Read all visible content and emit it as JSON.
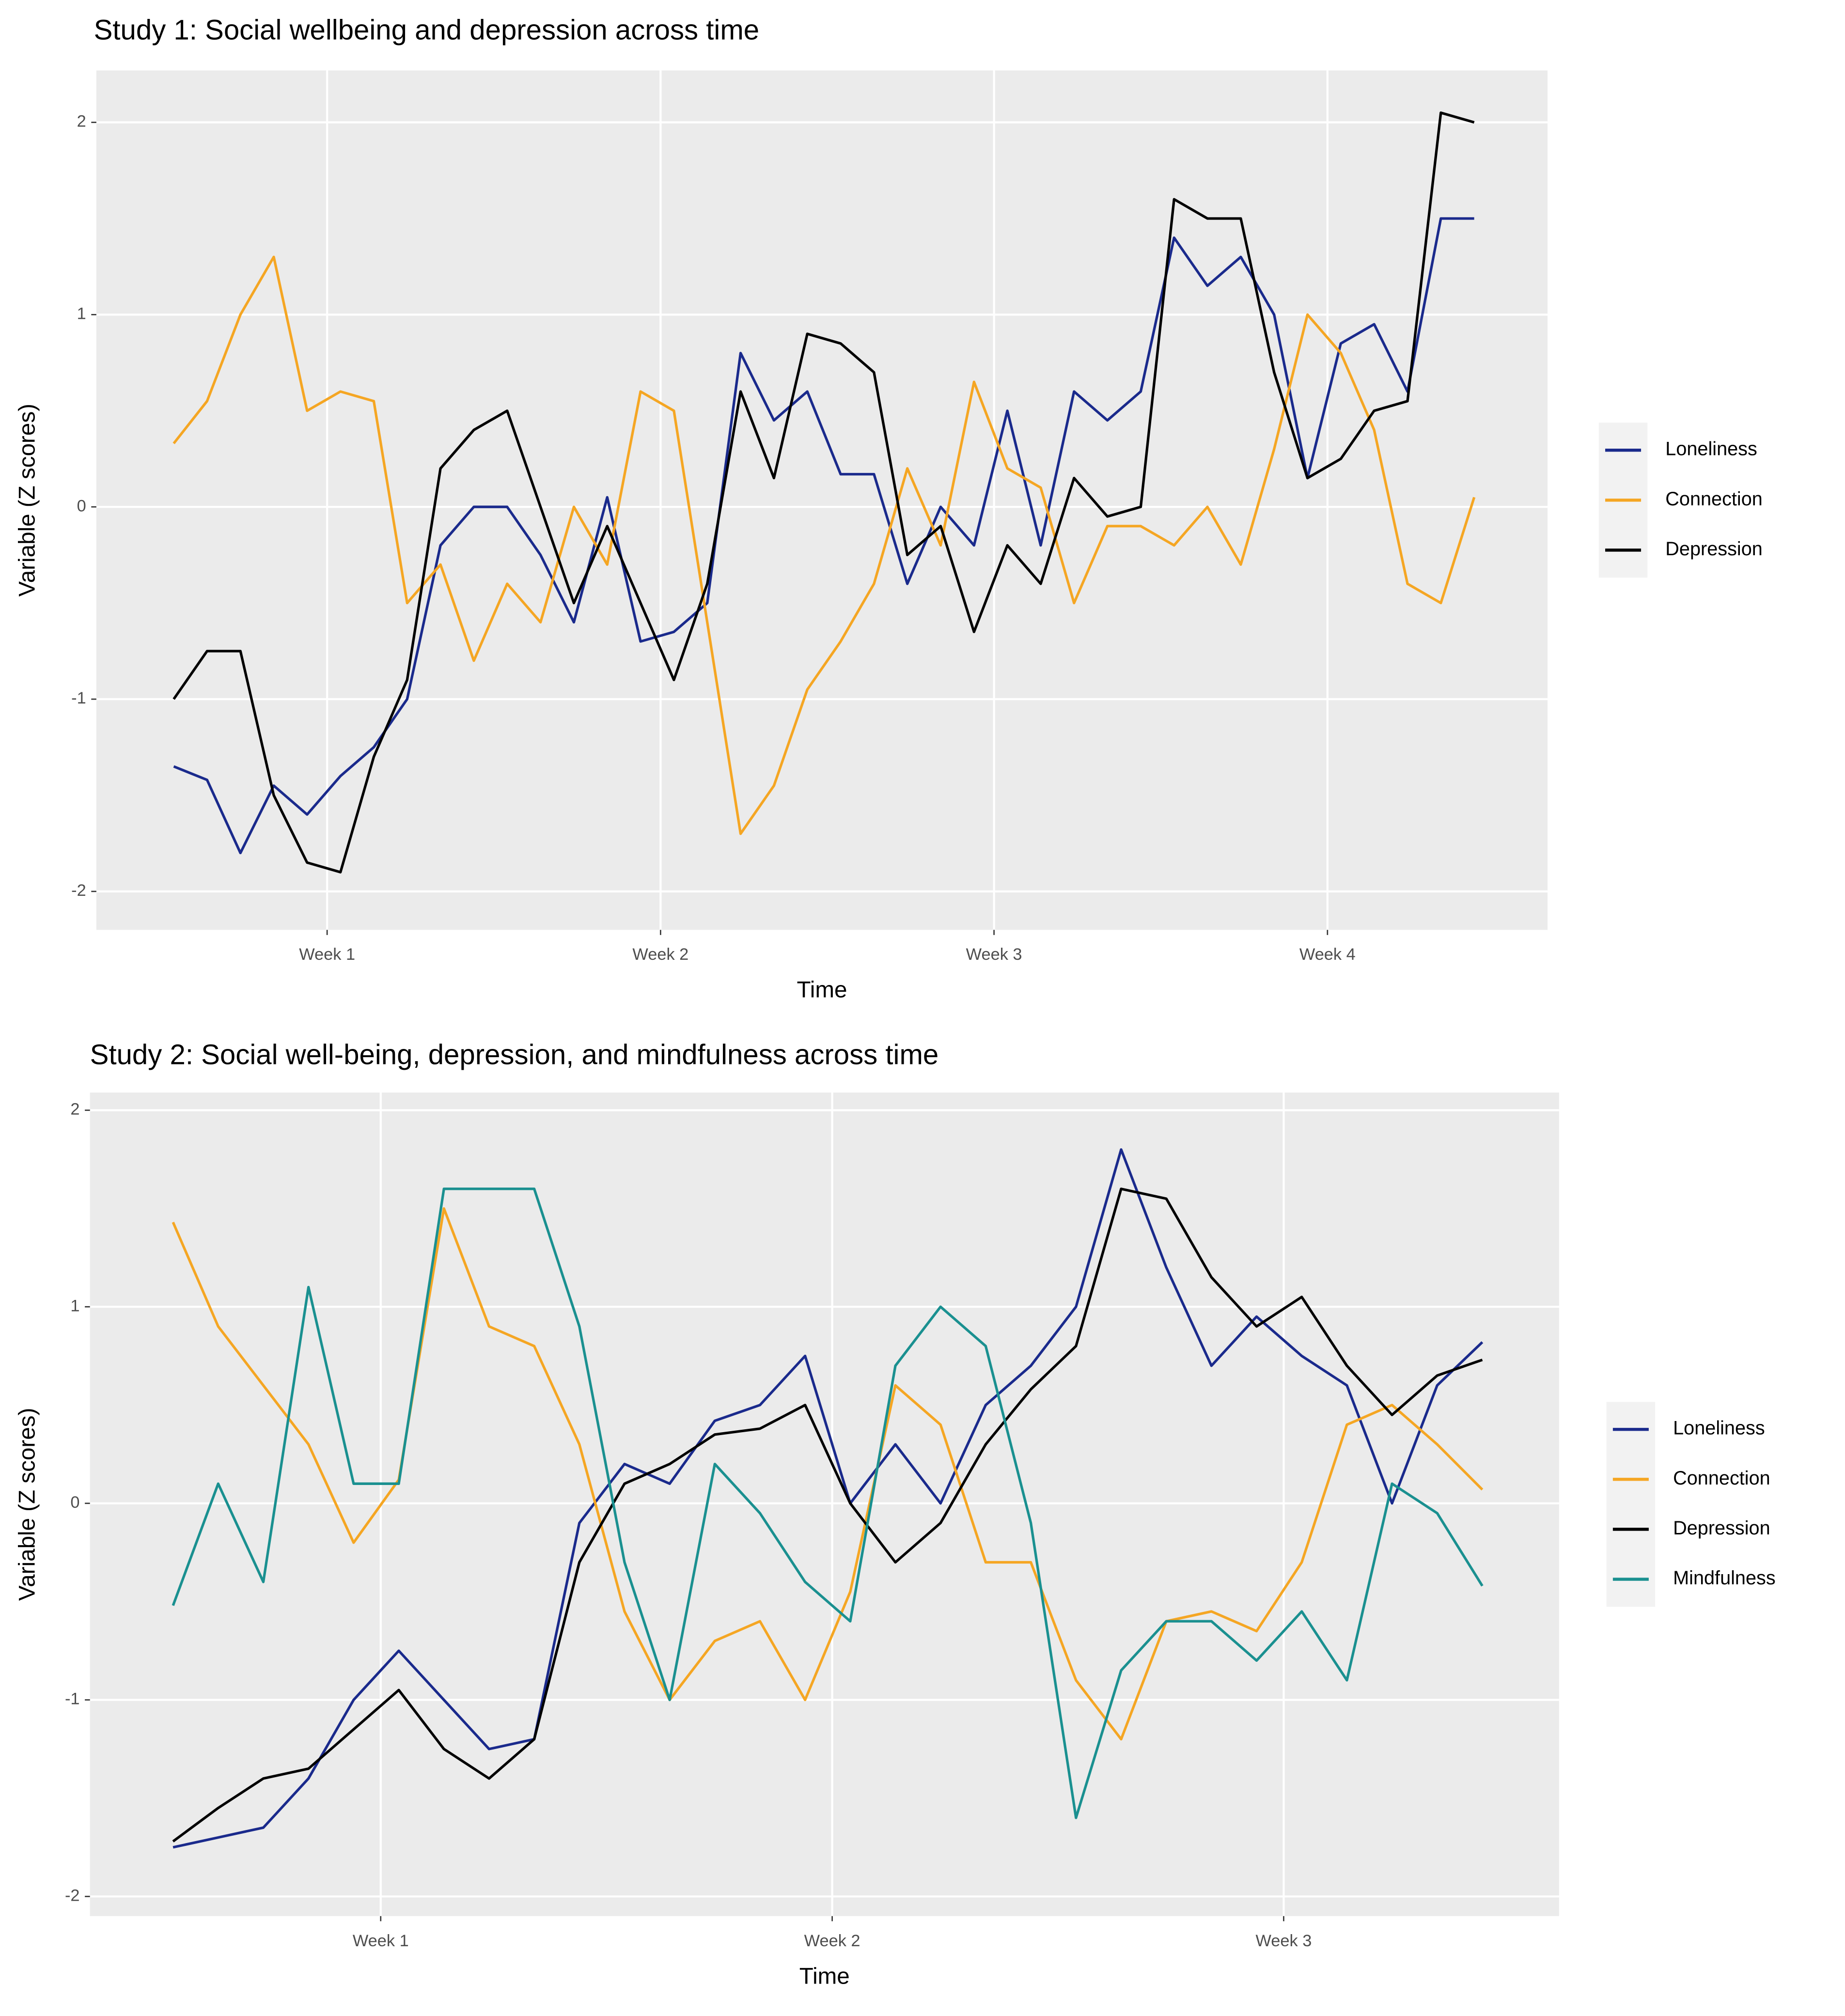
{
  "chart_data": [
    {
      "type": "line",
      "title": "Study 1: Social wellbeing and depression across time",
      "xlabel": "Time",
      "ylabel": "Variable (Z scores)",
      "x": [
        0.54,
        0.64,
        0.74,
        0.84,
        0.94,
        1.04,
        1.14,
        1.24,
        1.34,
        1.44,
        1.54,
        1.64,
        1.74,
        1.84,
        1.94,
        2.04,
        2.14,
        2.24,
        2.34,
        2.44,
        2.54,
        2.64,
        2.74,
        2.84,
        2.94,
        3.04,
        3.14,
        3.24,
        3.34,
        3.44,
        3.54,
        3.64,
        3.74,
        3.84,
        3.94,
        4.04,
        4.14,
        4.24,
        4.34,
        4.44
      ],
      "series": [
        {
          "name": "Loneliness",
          "color": "#1a2a8c",
          "values": [
            -1.35,
            -1.42,
            -1.8,
            -1.45,
            -1.6,
            -1.4,
            -1.25,
            -1.0,
            -0.2,
            0.0,
            0.0,
            -0.25,
            -0.6,
            0.05,
            -0.7,
            -0.65,
            -0.5,
            0.8,
            0.45,
            0.6,
            0.17,
            0.17,
            -0.4,
            0.0,
            -0.2,
            0.5,
            -0.2,
            0.6,
            0.45,
            0.6,
            1.4,
            1.15,
            1.3,
            1.0,
            0.15,
            0.85,
            0.95,
            0.6,
            1.5,
            1.5
          ]
        },
        {
          "name": "Connection",
          "color": "#f5a623",
          "values": [
            0.33,
            0.55,
            1.0,
            1.3,
            0.5,
            0.6,
            0.55,
            -0.5,
            -0.3,
            -0.8,
            -0.4,
            -0.6,
            0.0,
            -0.3,
            0.6,
            0.5,
            -0.6,
            -1.7,
            -1.45,
            -0.95,
            -0.7,
            -0.4,
            0.2,
            -0.2,
            0.65,
            0.2,
            0.1,
            -0.5,
            -0.1,
            -0.1,
            -0.2,
            0.0,
            -0.3,
            0.3,
            1.0,
            0.8,
            0.4,
            -0.4,
            -0.5,
            0.05
          ]
        },
        {
          "name": "Depression",
          "color": "#000000",
          "values": [
            -1.0,
            -0.75,
            -0.75,
            -1.5,
            -1.85,
            -1.9,
            -1.3,
            -0.9,
            0.2,
            0.4,
            0.5,
            0.0,
            -0.5,
            -0.1,
            -0.5,
            -0.9,
            -0.4,
            0.6,
            0.15,
            0.9,
            0.85,
            0.7,
            -0.25,
            -0.1,
            -0.65,
            -0.2,
            -0.4,
            0.15,
            -0.05,
            0.0,
            1.6,
            1.5,
            1.5,
            0.7,
            0.15,
            0.25,
            0.5,
            0.55,
            2.05,
            2.0
          ]
        }
      ],
      "xlim": [
        0.308,
        4.66
      ],
      "xticks": [
        {
          "value": 1,
          "label": "Week 1"
        },
        {
          "value": 2,
          "label": "Week 2"
        },
        {
          "value": 3,
          "label": "Week 3"
        },
        {
          "value": 4,
          "label": "Week 4"
        }
      ],
      "ylim": [
        -2.2,
        2.27
      ],
      "yticks": [
        -2,
        -1,
        0,
        1,
        2
      ],
      "grid": true,
      "legend": "right"
    },
    {
      "type": "line",
      "title": "Study 2: Social well-being, depression, and mindfulness across time",
      "xlabel": "Time",
      "ylabel": "Variable (Z scores)",
      "x": [
        0.54,
        0.64,
        0.74,
        0.84,
        0.94,
        1.04,
        1.14,
        1.24,
        1.34,
        1.44,
        1.54,
        1.64,
        1.74,
        1.84,
        1.94,
        2.04,
        2.14,
        2.24,
        2.34,
        2.44,
        2.54,
        2.64,
        2.74,
        2.84,
        2.94,
        3.04,
        3.14,
        3.24,
        3.34,
        3.44
      ],
      "series": [
        {
          "name": "Loneliness",
          "color": "#1a2a8c",
          "values": [
            -1.75,
            -1.7,
            -1.65,
            -1.4,
            -1.0,
            -0.75,
            -1.0,
            -1.25,
            -1.2,
            -0.1,
            0.2,
            0.1,
            0.42,
            0.5,
            0.75,
            0.0,
            0.3,
            0.0,
            0.5,
            0.7,
            1.0,
            1.8,
            1.2,
            0.7,
            0.95,
            0.75,
            0.6,
            0.0,
            0.6,
            0.82
          ]
        },
        {
          "name": "Connection",
          "color": "#f5a623",
          "values": [
            1.43,
            0.9,
            0.6,
            0.3,
            -0.2,
            0.12,
            1.5,
            0.9,
            0.8,
            0.3,
            -0.55,
            -1.0,
            -0.7,
            -0.6,
            -1.0,
            -0.45,
            0.6,
            0.4,
            -0.3,
            -0.3,
            -0.9,
            -1.2,
            -0.6,
            -0.55,
            -0.65,
            -0.3,
            0.4,
            0.5,
            0.3,
            0.07
          ]
        },
        {
          "name": "Depression",
          "color": "#000000",
          "values": [
            -1.72,
            -1.55,
            -1.4,
            -1.35,
            -1.15,
            -0.95,
            -1.25,
            -1.4,
            -1.2,
            -0.3,
            0.1,
            0.2,
            0.35,
            0.38,
            0.5,
            0.0,
            -0.3,
            -0.1,
            0.3,
            0.58,
            0.8,
            1.6,
            1.55,
            1.15,
            0.9,
            1.05,
            0.7,
            0.45,
            0.65,
            0.73
          ]
        },
        {
          "name": "Mindfulness",
          "color": "#1a9090",
          "values": [
            -0.52,
            0.1,
            -0.4,
            1.1,
            0.1,
            0.1,
            1.6,
            1.6,
            1.6,
            0.9,
            -0.3,
            -1.0,
            0.2,
            -0.05,
            -0.4,
            -0.6,
            0.7,
            1.0,
            0.8,
            -0.1,
            -1.6,
            -0.85,
            -0.6,
            -0.6,
            -0.8,
            -0.55,
            -0.9,
            0.1,
            -0.05,
            -0.42
          ]
        }
      ],
      "xlim": [
        0.356,
        3.61
      ],
      "xticks": [
        {
          "value": 1,
          "label": "Week 1"
        },
        {
          "value": 2,
          "label": "Week 2"
        },
        {
          "value": 3,
          "label": "Week 3"
        }
      ],
      "ylim": [
        -2.1,
        2.09
      ],
      "yticks": [
        -2,
        -1,
        0,
        1,
        2
      ],
      "grid": true,
      "legend": "right"
    }
  ]
}
